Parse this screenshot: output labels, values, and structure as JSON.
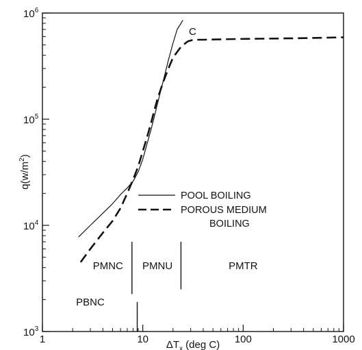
{
  "chart_data": {
    "type": "line",
    "xscale": "log",
    "yscale": "log",
    "xlim": [
      1,
      1000
    ],
    "ylim": [
      1000,
      1000000
    ],
    "xlabel_prefix": "ΔT",
    "xlabel_sub": "x",
    "xlabel_suffix": " (deg C)",
    "ylabel_prefix": "q(w/m",
    "ylabel_sup": "2",
    "ylabel_suffix": ")",
    "x_ticks": [
      {
        "value": 1,
        "label": "1"
      },
      {
        "value": 10,
        "label": "10"
      },
      {
        "value": 100,
        "label": "100"
      },
      {
        "value": 1000,
        "label": "1000"
      }
    ],
    "y_ticks": [
      {
        "value": 1000,
        "base": "10",
        "exp": "3"
      },
      {
        "value": 10000,
        "base": "10",
        "exp": "4"
      },
      {
        "value": 100000,
        "base": "10",
        "exp": "5"
      },
      {
        "value": 1000000,
        "base": "10",
        "exp": "6"
      }
    ],
    "series": [
      {
        "name": "POOL BOILING",
        "style": "solid",
        "x": [
          2.3,
          3,
          4,
          5,
          6,
          7,
          8,
          9,
          10,
          11,
          12,
          13,
          14,
          16,
          18,
          20,
          22,
          25
        ],
        "y": [
          7800,
          10000,
          13000,
          16000,
          19500,
          22500,
          26000,
          32000,
          42000,
          58000,
          78000,
          105000,
          140000,
          230000,
          360000,
          520000,
          700000,
          850000
        ]
      },
      {
        "name": "POROUS MEDIUM BOILING",
        "style": "dashed",
        "x": [
          2.4,
          3,
          4,
          5,
          6,
          7,
          8,
          9,
          10,
          11,
          12,
          13,
          14,
          16,
          18,
          20,
          24,
          28,
          32,
          40,
          60,
          100,
          200,
          400,
          1000
        ],
        "y": [
          4500,
          6000,
          8500,
          11000,
          14500,
          20000,
          27000,
          36000,
          50000,
          67000,
          90000,
          120000,
          155000,
          225000,
          300000,
          380000,
          480000,
          540000,
          560000,
          560000,
          565000,
          570000,
          575000,
          580000,
          590000
        ]
      }
    ],
    "legend": {
      "placement": "center-right",
      "entries": [
        {
          "lines": [
            "POOL BOILING"
          ],
          "style": "solid"
        },
        {
          "lines": [
            "POROUS MEDIUM",
            "BOILING"
          ],
          "style": "dashed"
        }
      ]
    },
    "annotations": {
      "curve_label": "C",
      "regions": [
        {
          "label": "PMNC",
          "x": 4.5
        },
        {
          "label": "PMNU",
          "x": 14
        },
        {
          "label": "PMTR",
          "x": 100
        },
        {
          "label": "PBNC",
          "x": 3.0
        }
      ],
      "dividers": [
        {
          "x": 7.8,
          "y_top": 7000,
          "y_bottom": 2250
        },
        {
          "x": 24,
          "y_top": 7000,
          "y_bottom": 2500
        },
        {
          "x": 8.8,
          "y_top": 1900,
          "y_bottom": 1000
        }
      ]
    },
    "grid": false
  }
}
